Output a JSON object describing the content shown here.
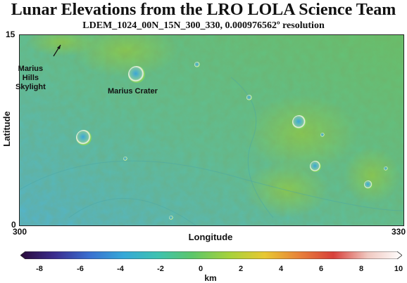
{
  "title": "Lunar Elevations from the LRO LOLA Science Team",
  "subtitle": "LDEM_1024_00N_15N_300_330, 0.000976562º resolution",
  "axes": {
    "x_label": "Longitude",
    "y_label": "Latitude",
    "x_ticks": [
      "300",
      "330"
    ],
    "y_ticks": [
      "15",
      "0"
    ]
  },
  "annotations": {
    "skylight": "Marius\nHills\nSkylight",
    "crater": "Marius Crater"
  },
  "colorbar": {
    "ticks": [
      "-8",
      "-6",
      "-4",
      "-2",
      "0",
      "2",
      "4",
      "6",
      "8",
      "10"
    ],
    "units": "km",
    "colors": [
      "#2a0a3a",
      "#3b2d8f",
      "#3a6fd0",
      "#35a8d8",
      "#3ec2b0",
      "#5cc66a",
      "#a8d23a",
      "#e8c832",
      "#e8823a",
      "#d8403a",
      "#f0c8c0",
      "#ffffff"
    ]
  },
  "map_colors": {
    "low": "#55b8c8",
    "mid": "#5fbf92",
    "high": "#6cc45a",
    "peak": "#9ccc48"
  }
}
